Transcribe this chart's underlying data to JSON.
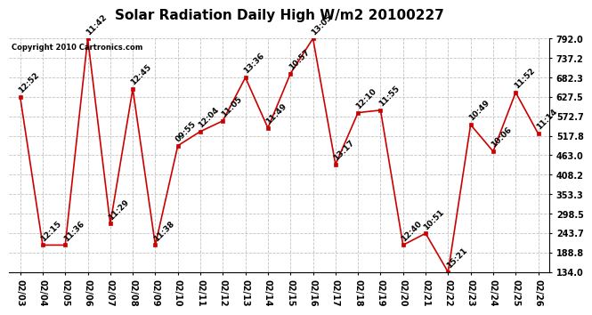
{
  "title": "Solar Radiation Daily High W/m2 20100227",
  "copyright": "Copyright 2010 Cartronics.com",
  "dates": [
    "02/03",
    "02/04",
    "02/05",
    "02/06",
    "02/07",
    "02/08",
    "02/09",
    "02/10",
    "02/11",
    "02/12",
    "02/13",
    "02/14",
    "02/15",
    "02/16",
    "02/17",
    "02/18",
    "02/19",
    "02/20",
    "02/21",
    "02/22",
    "02/23",
    "02/24",
    "02/25",
    "02/26"
  ],
  "values": [
    627.5,
    210,
    210,
    792,
    270,
    650,
    210,
    490,
    530,
    560,
    682,
    540,
    693,
    792,
    437,
    583,
    590,
    210,
    243,
    134,
    549,
    474,
    640,
    524
  ],
  "labels": [
    "12:52",
    "12:15",
    "11:36",
    "11:42",
    "11:29",
    "12:45",
    "11:38",
    "09:55",
    "12:04",
    "11:05",
    "13:36",
    "11:49",
    "10:57",
    "13:05",
    "13:17",
    "12:10",
    "11:55",
    "12:40",
    "10:51",
    "15:21",
    "10:49",
    "10:06",
    "11:52",
    "11:14"
  ],
  "ylim": [
    134.0,
    792.0
  ],
  "yticks": [
    134.0,
    188.8,
    243.7,
    298.5,
    353.3,
    408.2,
    463.0,
    517.8,
    572.7,
    627.5,
    682.3,
    737.2,
    792.0
  ],
  "line_color": "#cc0000",
  "marker_color": "#cc0000",
  "background_color": "#ffffff",
  "grid_color": "#bbbbbb",
  "title_fontsize": 11,
  "label_fontsize": 6.5,
  "tick_fontsize": 7,
  "copyright_fontsize": 6
}
